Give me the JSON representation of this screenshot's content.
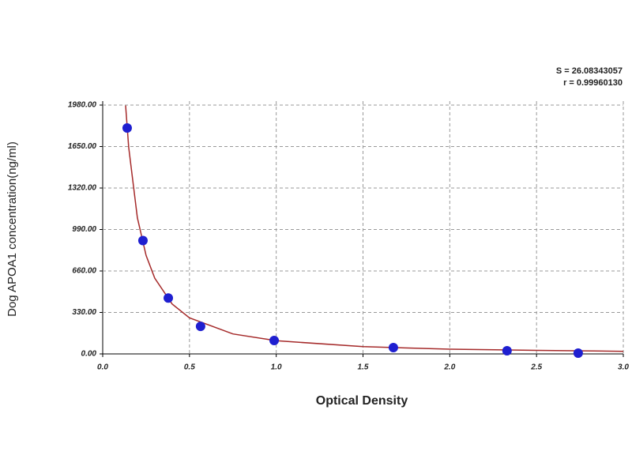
{
  "chart_data": {
    "type": "scatter",
    "x_label": "Optical Density",
    "y_label": "Dog APOA1 concentration(ng/ml)",
    "annotations": [
      "S = 26.08343057",
      "r = 0.99960130"
    ],
    "xlim": [
      0,
      3
    ],
    "ylim": [
      0,
      1980
    ],
    "xticks": [
      {
        "value": 0,
        "label": "0.0"
      },
      0.5,
      {
        "value": 1,
        "label": "1.0"
      },
      1.5,
      {
        "value": 2,
        "label": "2.0"
      },
      2.5,
      {
        "value": 3,
        "label": "3.0"
      }
    ],
    "yticks": [
      {
        "value": 0,
        "label": "0.00"
      },
      {
        "value": 330,
        "label": "330.00"
      },
      {
        "value": 660,
        "label": "660.00"
      },
      {
        "value": 990,
        "label": "990.00"
      },
      {
        "value": 1320,
        "label": "1320.00"
      },
      {
        "value": 1650,
        "label": "1650.00"
      },
      {
        "value": 1980,
        "label": "1980.00"
      }
    ],
    "grid": true,
    "series": [
      {
        "kind": "points",
        "color": "#1f1fd0",
        "x": [
          0.141,
          0.232,
          0.378,
          0.564,
          0.988,
          1.675,
          2.33,
          2.74
        ],
        "values": [
          1798,
          902,
          445,
          219,
          107,
          50,
          25,
          6
        ]
      },
      {
        "kind": "curve",
        "color": "#a52a2a",
        "x": [
          0.132,
          0.15,
          0.2,
          0.25,
          0.3,
          0.4,
          0.5,
          0.75,
          1.0,
          1.5,
          2.0,
          2.5,
          3.0
        ],
        "values": [
          1976,
          1644,
          1083,
          784,
          602,
          397,
          287,
          159,
          105,
          58,
          38,
          28,
          21
        ]
      }
    ]
  }
}
